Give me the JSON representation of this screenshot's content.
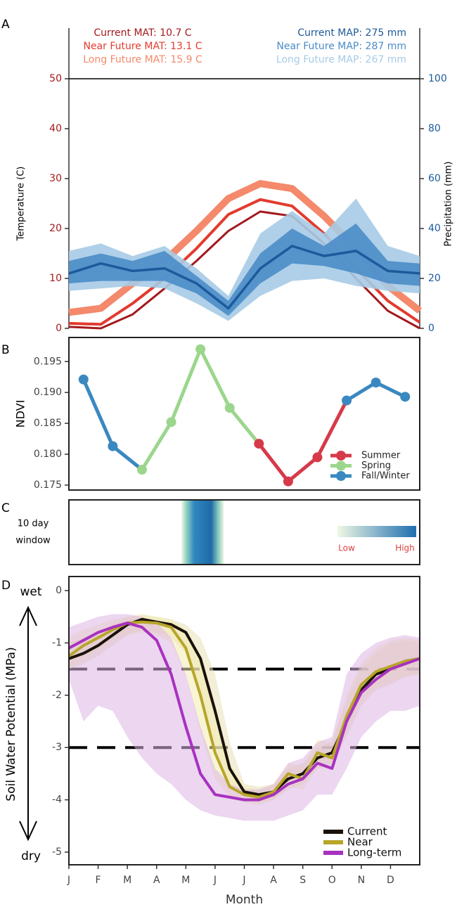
{
  "chart_data": [
    {
      "type": "line",
      "label": "A",
      "ylabel": "Temperature (C)",
      "y2label": "Precipitation (mm)",
      "x": [
        0.5,
        1.5,
        2.5,
        3.5,
        4.5,
        5.5,
        6.5,
        7.5,
        8.5,
        9.5,
        10.5,
        11.5
      ],
      "xlim": [
        0.5,
        11.5
      ],
      "ylim": [
        0,
        50
      ],
      "yticks": [
        0,
        10,
        20,
        30,
        40,
        50
      ],
      "y_color": "#a3191c",
      "y2lim": [
        0,
        100
      ],
      "y2ticks": [
        0,
        20,
        40,
        60,
        80,
        100
      ],
      "y2_color": "#1c5a9c",
      "annotations": [
        {
          "text": "Current MAT: 10.7 C",
          "color": "#a3191c",
          "align": "left"
        },
        {
          "text": "Near Future MAT: 13.1 C",
          "color": "#e23b2e",
          "align": "left"
        },
        {
          "text": "Long Future MAT: 15.9 C",
          "color": "#f4896b",
          "align": "left"
        },
        {
          "text": "Current MAP: 275 mm",
          "color": "#1c5a9c",
          "align": "right"
        },
        {
          "text": "Near Future MAP: 287 mm",
          "color": "#4b8cc8",
          "align": "right"
        },
        {
          "text": "Long Future MAP: 267 mm",
          "color": "#a6cbe6",
          "align": "right"
        }
      ],
      "series": [
        {
          "color": "#f4896b",
          "width": 10,
          "values": [
            3.2,
            4,
            9,
            13.5,
            19.5,
            26,
            29,
            28,
            22.5,
            16,
            8.5,
            3.5
          ]
        },
        {
          "color": "#e23b2e",
          "width": 4,
          "values": [
            1,
            0.8,
            5,
            10,
            16,
            22.8,
            25.8,
            24.5,
            19,
            12,
            5.5,
            1.2
          ]
        },
        {
          "color": "#a3191c",
          "width": 3,
          "values": [
            0.3,
            0,
            2.8,
            8,
            13.5,
            19.5,
            23.4,
            22.5,
            17,
            10,
            3.5,
            0
          ]
        },
        {
          "axis": "y2",
          "color": "#1c5a9c",
          "width": 3.5,
          "values": [
            22,
            26,
            23,
            24,
            18,
            8,
            24,
            33,
            29,
            31,
            23,
            22
          ],
          "bands": [
            {
              "color": "#a6cbe6",
              "low": [
                15,
                16,
                17,
                16,
                10,
                3,
                13,
                19,
                20,
                17,
                15,
                14
              ],
              "high": [
                31,
                34,
                29,
                33,
                24,
                13,
                38,
                47,
                38,
                52,
                33,
                29
              ]
            },
            {
              "color": "#4b8cc8",
              "low": [
                18,
                19,
                19,
                19,
                14,
                5,
                18,
                26,
                25,
                22,
                18,
                17
              ],
              "high": [
                27,
                30,
                27,
                31,
                21,
                11,
                30,
                40,
                33,
                42,
                27,
                26
              ]
            }
          ]
        }
      ]
    },
    {
      "type": "line",
      "label": "B",
      "ylabel": "NDVI",
      "x": [
        0.5,
        1.5,
        2.5,
        3.5,
        4.5,
        5.5,
        6.5,
        7.5,
        8.5,
        9.5,
        10.5,
        11.5
      ],
      "xlim": [
        0,
        12
      ],
      "ylim": [
        0.1742,
        0.1989
      ],
      "yticks": [
        0.175,
        {
          "value": 0.18,
          "label": "0.180"
        },
        0.185,
        {
          "value": 0.19,
          "label": "0.190"
        },
        0.195
      ],
      "groups": [
        {
          "name": "Summer",
          "color": "#d63a4a"
        },
        {
          "name": "Spring",
          "color": "#9bd68c"
        },
        {
          "name": "Fall/Winter",
          "color": "#3a88c0"
        }
      ],
      "legend": "lower right",
      "series": [
        {
          "width": 5,
          "values": [
            0.1921,
            0.1813,
            0.1775,
            0.1852,
            0.197,
            0.1875,
            0.1817,
            0.1756,
            0.1795,
            0.1887,
            0.1916,
            0.1893
          ],
          "season": [
            2,
            2,
            1,
            1,
            1,
            1,
            0,
            0,
            0,
            2,
            2,
            2
          ]
        }
      ]
    },
    {
      "type": "heatmap",
      "label": "C",
      "ylabel": [
        "10 day",
        "window"
      ],
      "xlim": [
        0,
        12
      ],
      "window": [
        3.85,
        5.3
      ],
      "colorbar": {
        "low": "Low",
        "high": "High",
        "colors": [
          "#eef7e4",
          "#1f6fb0"
        ]
      }
    },
    {
      "type": "line",
      "label": "D",
      "ylabel": "Soil Water Potential (MPa)",
      "xlabel": "Month",
      "annotations": [
        "wet",
        "dry"
      ],
      "x": [
        0,
        0.5,
        1,
        1.5,
        2,
        2.5,
        3,
        3.5,
        4,
        4.5,
        5,
        5.5,
        6,
        6.5,
        7,
        7.5,
        8,
        8.5,
        9,
        9.5,
        10,
        10.5,
        11,
        11.5,
        12
      ],
      "xlim": [
        0,
        12
      ],
      "xticks": [
        {
          "value": 0,
          "label": "J"
        },
        {
          "value": 1,
          "label": "F"
        },
        {
          "value": 2,
          "label": "M"
        },
        {
          "value": 3,
          "label": "A"
        },
        {
          "value": 4,
          "label": "M"
        },
        {
          "value": 5,
          "label": "J"
        },
        {
          "value": 6,
          "label": "J"
        },
        {
          "value": 7,
          "label": "A"
        },
        {
          "value": 8,
          "label": "S"
        },
        {
          "value": 9,
          "label": "O"
        },
        {
          "value": 10,
          "label": "N"
        },
        {
          "value": 11,
          "label": "D"
        }
      ],
      "ylim": [
        -5.242,
        0.269
      ],
      "yticks": [
        0,
        -1,
        -2,
        -3,
        -4,
        -5
      ],
      "hlines": [
        -1.5,
        -3
      ],
      "legend": "lower right",
      "series": [
        {
          "name": "Current",
          "color": "#1a1208",
          "width": 4,
          "band_color": "#e8e0b8",
          "values": [
            -1.3,
            -1.2,
            -1.05,
            -0.85,
            -0.65,
            -0.55,
            -0.6,
            -0.65,
            -0.8,
            -1.3,
            -2.3,
            -3.4,
            -3.85,
            -3.9,
            -3.85,
            -3.6,
            -3.5,
            -3.2,
            -3.1,
            -2.5,
            -1.9,
            -1.6,
            -1.5,
            -1.35,
            -1.3
          ],
          "low": [
            -1.5,
            -1.4,
            -1.25,
            -1.05,
            -0.85,
            -0.75,
            -0.8,
            -0.9,
            -1.2,
            -2.0,
            -3.0,
            -3.7,
            -4.0,
            -4.05,
            -4.0,
            -3.8,
            -3.7,
            -3.4,
            -3.3,
            -2.8,
            -2.2,
            -1.9,
            -1.8,
            -1.65,
            -1.6
          ],
          "high": [
            -1.0,
            -0.9,
            -0.8,
            -0.65,
            -0.5,
            -0.45,
            -0.5,
            -0.55,
            -0.65,
            -0.9,
            -1.6,
            -2.9,
            -3.7,
            -3.75,
            -3.7,
            -3.4,
            -3.3,
            -3.0,
            -2.9,
            -2.1,
            -1.5,
            -1.2,
            -1.0,
            -0.95,
            -1.0
          ]
        },
        {
          "name": "Near",
          "color": "#b8a52a",
          "width": 4,
          "band_color": "#f2ecb0",
          "values": [
            -1.25,
            -1.05,
            -0.9,
            -0.75,
            -0.62,
            -0.6,
            -0.62,
            -0.7,
            -1.1,
            -2.0,
            -3.1,
            -3.75,
            -3.9,
            -3.95,
            -3.85,
            -3.5,
            -3.6,
            -3.1,
            -3.2,
            -2.4,
            -1.8,
            -1.55,
            -1.45,
            -1.35,
            -1.3
          ],
          "low": [
            -1.5,
            -1.3,
            -1.15,
            -0.95,
            -0.85,
            -0.8,
            -0.85,
            -1.0,
            -1.6,
            -2.7,
            -3.6,
            -3.95,
            -4.05,
            -4.1,
            -4.0,
            -3.75,
            -3.8,
            -3.4,
            -3.4,
            -2.7,
            -2.1,
            -1.85,
            -1.75,
            -1.65,
            -1.6
          ],
          "high": [
            -0.9,
            -0.75,
            -0.65,
            -0.55,
            -0.5,
            -0.48,
            -0.5,
            -0.55,
            -0.75,
            -1.3,
            -2.3,
            -3.3,
            -3.75,
            -3.8,
            -3.7,
            -3.3,
            -3.35,
            -2.85,
            -2.9,
            -2.0,
            -1.4,
            -1.1,
            -0.95,
            -0.9,
            -0.95
          ]
        },
        {
          "name": "Long-term",
          "color": "#a832c0",
          "width": 4,
          "band_color": "#dcb4e4",
          "values": [
            -1.1,
            -0.95,
            -0.8,
            -0.7,
            -0.62,
            -0.7,
            -0.95,
            -1.6,
            -2.6,
            -3.5,
            -3.9,
            -3.95,
            -4.0,
            -4.0,
            -3.9,
            -3.7,
            -3.6,
            -3.3,
            -3.4,
            -2.5,
            -1.95,
            -1.7,
            -1.5,
            -1.4,
            -1.3
          ],
          "low": [
            -1.7,
            -2.5,
            -2.2,
            -2.3,
            -2.8,
            -3.2,
            -3.5,
            -3.7,
            -4.0,
            -4.2,
            -4.3,
            -4.35,
            -4.4,
            -4.4,
            -4.4,
            -4.3,
            -4.2,
            -3.9,
            -3.9,
            -3.4,
            -2.8,
            -2.5,
            -2.3,
            -2.3,
            -2.2
          ],
          "high": [
            -0.7,
            -0.6,
            -0.5,
            -0.45,
            -0.45,
            -0.5,
            -0.6,
            -0.9,
            -1.6,
            -2.6,
            -3.4,
            -3.7,
            -3.8,
            -3.8,
            -3.7,
            -3.3,
            -3.2,
            -2.9,
            -2.8,
            -1.6,
            -1.2,
            -1.0,
            -0.9,
            -0.85,
            -0.9
          ]
        }
      ]
    }
  ]
}
